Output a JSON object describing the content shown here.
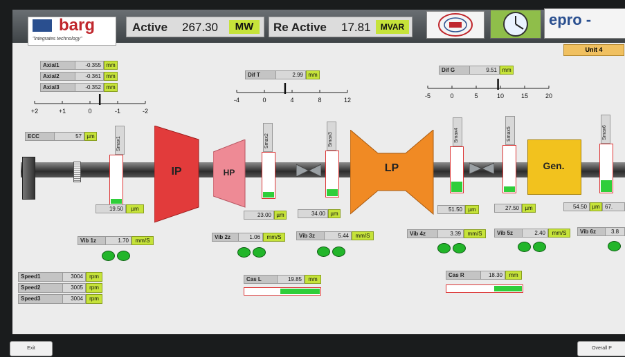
{
  "header": {
    "logo_name": "barg",
    "logo_tag": "\"integrates technology\"",
    "active_label": "Active",
    "active_value": "267.30",
    "active_unit": "MW",
    "reactive_label": "Re Active",
    "reactive_value": "17.81",
    "reactive_unit": "MVAR",
    "vendor": "epro -",
    "unit_name": "Unit 4"
  },
  "axial": [
    {
      "label": "Axial1",
      "value": "-0.355",
      "unit": "mm"
    },
    {
      "label": "Axial2",
      "value": "-0.361",
      "unit": "mm"
    },
    {
      "label": "Axial3",
      "value": "-0.352",
      "unit": "mm"
    }
  ],
  "axial_scale": {
    "ticks": [
      "+2",
      "+1",
      "0",
      "-1",
      "-2"
    ],
    "indicator": -0.355
  },
  "dif_t": {
    "label": "Dif T",
    "value": "2.99",
    "unit": "mm",
    "ticks": [
      "-4",
      "0",
      "4",
      "8",
      "12"
    ],
    "indicator": 2.99
  },
  "dif_g": {
    "label": "Dif G",
    "value": "9.51",
    "unit": "mm",
    "ticks": [
      "-5",
      "0",
      "5",
      "10",
      "15",
      "20"
    ],
    "indicator": 9.51
  },
  "ecc": {
    "label": "ECC",
    "value": "57",
    "unit": "µm"
  },
  "turbines": {
    "ip": "IP",
    "hp": "HP",
    "lp": "LP",
    "gen": "Gen."
  },
  "smax": [
    {
      "label": "Smax1",
      "value": "19.50",
      "unit": "µm",
      "level": 0.1
    },
    {
      "label": "Smax2",
      "value": "23.00",
      "unit": "µm",
      "level": 0.12
    },
    {
      "label": "Smax3",
      "value": "34.00",
      "unit": "µm",
      "level": 0.15
    },
    {
      "label": "Smax4",
      "value": "51.50",
      "unit": "µm",
      "level": 0.22
    },
    {
      "label": "Smax5",
      "value": "27.50",
      "unit": "µm",
      "level": 0.12
    },
    {
      "label": "Smax6",
      "value": "54.50",
      "unit": "µm",
      "value_cut": "67.",
      "level": 0.24
    }
  ],
  "vib": [
    {
      "label": "Vib 1z",
      "value": "1.70",
      "unit": "mm/S"
    },
    {
      "label": "Vib 2z",
      "value": "1.06",
      "unit": "mm/S"
    },
    {
      "label": "Vib 3z",
      "value": "5.44",
      "unit": "mm/S"
    },
    {
      "label": "Vib 4z",
      "value": "3.39",
      "unit": "mm/S"
    },
    {
      "label": "Vib 5z",
      "value": "2.40",
      "unit": "mm/S"
    },
    {
      "label": "Vib 6z",
      "value": "3.8"
    }
  ],
  "speed": [
    {
      "label": "Speed1",
      "value": "3004",
      "unit": "rpm"
    },
    {
      "label": "Speed2",
      "value": "3005",
      "unit": "rpm"
    },
    {
      "label": "Speed3",
      "value": "3004",
      "unit": "rpm"
    }
  ],
  "cas_l": {
    "label": "Cas L",
    "value": "19.85",
    "unit": "mm",
    "level": 0.52
  },
  "cas_r": {
    "label": "Cas R",
    "value": "18.30",
    "unit": "mm",
    "level": 0.36
  },
  "buttons": {
    "exit": "Exit",
    "overall": "Overall P"
  },
  "colors": {
    "ip": "#e23b3b",
    "hp": "#ee8a95",
    "lp": "#f08a24",
    "gen": "#f2c21e",
    "ok": "#2fce3a",
    "unit_green": "#c6e33a"
  }
}
